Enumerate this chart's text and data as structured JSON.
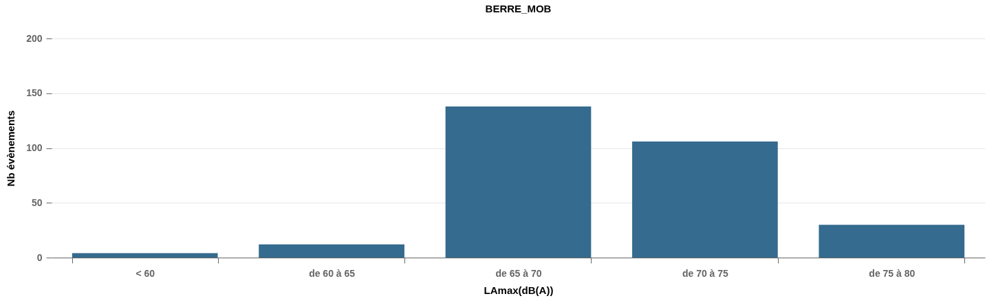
{
  "chart_data": {
    "type": "bar",
    "title": "BERRE_MOB",
    "xlabel": "LAmax(dB(A))",
    "ylabel": "Nb évènements",
    "categories": [
      "< 60",
      "de 60 à 65",
      "de 65 à 70",
      "de 70 à 75",
      "de 75 à 80"
    ],
    "values": [
      4,
      12,
      138,
      106,
      30
    ],
    "color": "#346b8e",
    "ylim": [
      0,
      200
    ],
    "yticks": [
      0,
      50,
      100,
      150,
      200
    ],
    "grid": "y"
  }
}
